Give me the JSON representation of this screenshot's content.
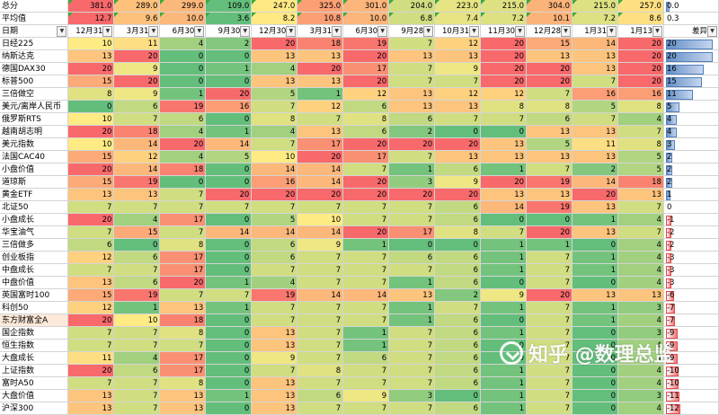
{
  "sheet": {
    "label_summary": "总分",
    "label_average": "平均值",
    "label_date": "日期",
    "label_last_col": "差异",
    "dates": [
      "12月31",
      "3月31",
      "6月30",
      "9月30",
      "12月30",
      "3月31",
      "6月30",
      "9月28",
      "10月31",
      "11月30",
      "12月28",
      "1月31",
      "1月13"
    ],
    "totals": [
      "381.0",
      "289.0",
      "299.0",
      "109.0",
      "247.0",
      "325.0",
      "301.0",
      "204.0",
      "223.0",
      "215.0",
      "304.0",
      "215.0",
      "257.0"
    ],
    "averages": [
      "12.7",
      "9.6",
      "10.0",
      "3.6",
      "8.2",
      "10.8",
      "10.0",
      "6.8",
      "7.4",
      "7.2",
      "10.1",
      "7.2",
      "8.6"
    ],
    "total_last": "0.0",
    "average_last": "0.3",
    "rows": [
      {
        "name": "日经225",
        "vals": [
          10,
          11,
          4,
          2,
          20,
          18,
          19,
          7,
          12,
          20,
          15,
          14,
          20
        ],
        "diff": 20
      },
      {
        "name": "纳斯达克",
        "vals": [
          13,
          20,
          0,
          0,
          13,
          13,
          20,
          13,
          13,
          20,
          13,
          13,
          20
        ],
        "diff": 20
      },
      {
        "name": "德国DAX30",
        "vals": [
          20,
          9,
          0,
          1,
          4,
          20,
          17,
          7,
          9,
          20,
          20,
          13,
          20
        ],
        "diff": 16
      },
      {
        "name": "标普500",
        "vals": [
          15,
          20,
          0,
          0,
          13,
          13,
          20,
          7,
          7,
          20,
          20,
          7,
          20
        ],
        "diff": 15
      },
      {
        "name": "三倍做空",
        "vals": [
          8,
          9,
          1,
          20,
          5,
          1,
          12,
          13,
          12,
          12,
          7,
          16,
          16
        ],
        "diff": 11
      },
      {
        "name": "美元/离岸人民币",
        "vals": [
          0,
          6,
          19,
          16,
          7,
          12,
          6,
          13,
          13,
          8,
          8,
          5,
          8
        ],
        "diff": 5
      },
      {
        "name": "俄罗斯RTS",
        "vals": [
          10,
          7,
          6,
          0,
          8,
          7,
          8,
          6,
          7,
          7,
          6,
          7,
          4
        ],
        "diff": 4
      },
      {
        "name": "越南胡志明",
        "vals": [
          20,
          18,
          4,
          1,
          4,
          13,
          6,
          2,
          0,
          0,
          13,
          13,
          7
        ],
        "diff": 4
      },
      {
        "name": "美元指数",
        "vals": [
          10,
          14,
          20,
          14,
          7,
          17,
          20,
          20,
          20,
          13,
          5,
          11,
          8
        ],
        "diff": 3
      },
      {
        "name": "法国CAC40",
        "vals": [
          15,
          12,
          4,
          5,
          10,
          20,
          17,
          7,
          13,
          13,
          13,
          13,
          5
        ],
        "diff": 2
      },
      {
        "name": "小盘价值",
        "vals": [
          20,
          14,
          18,
          0,
          14,
          14,
          7,
          1,
          6,
          1,
          7,
          2,
          5
        ],
        "diff": 2
      },
      {
        "name": "道琼斯",
        "vals": [
          15,
          19,
          0,
          0,
          16,
          14,
          20,
          3,
          9,
          20,
          19,
          14,
          18
        ],
        "diff": 2
      },
      {
        "name": "黄金ETF",
        "vals": [
          13,
          13,
          7,
          20,
          20,
          20,
          20,
          20,
          20,
          13,
          13,
          20,
          13
        ],
        "diff": 1
      },
      {
        "name": "北证50",
        "vals": [
          7,
          7,
          7,
          7,
          7,
          7,
          7,
          7,
          6,
          14,
          19,
          13,
          7
        ],
        "diff": 0
      },
      {
        "name": "小盘成长",
        "vals": [
          20,
          4,
          17,
          0,
          5,
          10,
          7,
          7,
          6,
          0,
          0,
          1,
          4
        ],
        "diff": -1
      },
      {
        "name": "华宝油气",
        "vals": [
          7,
          15,
          7,
          14,
          14,
          14,
          20,
          17,
          8,
          7,
          20,
          13,
          7
        ],
        "diff": -2
      },
      {
        "name": "三倍做多",
        "vals": [
          6,
          0,
          8,
          0,
          6,
          9,
          1,
          0,
          0,
          1,
          1,
          0,
          4
        ],
        "diff": -2
      },
      {
        "name": "创业板指",
        "vals": [
          12,
          6,
          17,
          0,
          6,
          7,
          7,
          6,
          6,
          1,
          7,
          1,
          4
        ],
        "diff": -3
      },
      {
        "name": "中盘成长",
        "vals": [
          7,
          7,
          17,
          0,
          7,
          7,
          7,
          7,
          6,
          1,
          7,
          1,
          4
        ],
        "diff": -3
      },
      {
        "name": "中盘价值",
        "vals": [
          13,
          6,
          20,
          1,
          4,
          7,
          7,
          1,
          6,
          0,
          7,
          0,
          4
        ],
        "diff": -3
      },
      {
        "name": "英国富时100",
        "vals": [
          15,
          19,
          7,
          7,
          19,
          14,
          14,
          13,
          2,
          9,
          20,
          13,
          13
        ],
        "diff": -6
      },
      {
        "name": "科创50",
        "vals": [
          12,
          1,
          13,
          1,
          7,
          7,
          7,
          1,
          7,
          1,
          7,
          1,
          3
        ],
        "diff": -7
      },
      {
        "name": "东方财富全A",
        "vals": [
          20,
          10,
          18,
          0,
          7,
          7,
          7,
          1,
          6,
          0,
          7,
          1,
          4
        ],
        "diff": -7
      },
      {
        "name": "国企指数",
        "vals": [
          7,
          7,
          8,
          0,
          13,
          7,
          1,
          7,
          6,
          1,
          7,
          0,
          3
        ],
        "diff": -9
      },
      {
        "name": "恒生指数",
        "vals": [
          7,
          7,
          7,
          0,
          13,
          7,
          1,
          7,
          6,
          0,
          7,
          0,
          4
        ],
        "diff": -9
      },
      {
        "name": "大盘成长",
        "vals": [
          11,
          4,
          17,
          0,
          9,
          7,
          6,
          7,
          6,
          0,
          7,
          0,
          4
        ],
        "diff": -9
      },
      {
        "name": "上证指数",
        "vals": [
          20,
          6,
          17,
          0,
          7,
          8,
          7,
          7,
          6,
          1,
          7,
          0,
          4
        ],
        "diff": -10
      },
      {
        "name": "富时A50",
        "vals": [
          7,
          7,
          8,
          0,
          13,
          7,
          7,
          7,
          6,
          1,
          7,
          0,
          4
        ],
        "diff": -10
      },
      {
        "name": "大盘价值",
        "vals": [
          13,
          7,
          13,
          1,
          13,
          6,
          9,
          3,
          0,
          1,
          7,
          0,
          3
        ],
        "diff": -11
      },
      {
        "name": "沪深300",
        "vals": [
          13,
          7,
          13,
          0,
          13,
          7,
          7,
          7,
          6,
          1,
          7,
          0,
          4
        ],
        "diff": -12
      }
    ]
  },
  "watermark": {
    "text": "知乎 @数理总监"
  },
  "colors": {
    "scale_low": "#63be7b",
    "scale_mid": "#ffeb84",
    "scale_high": "#f8696b",
    "bar_positive": "#638ec6",
    "bar_negative": "#f8696b"
  }
}
